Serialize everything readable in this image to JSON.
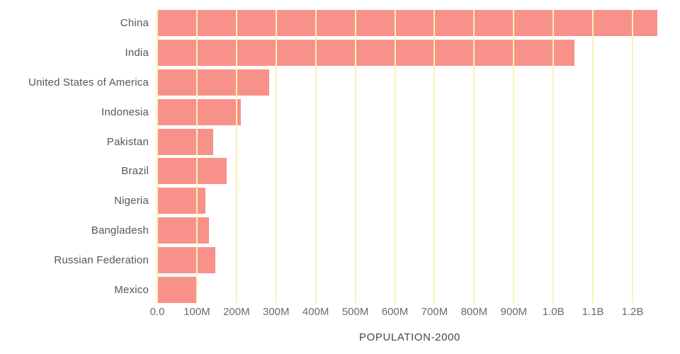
{
  "chart_data": {
    "type": "bar",
    "orientation": "horizontal",
    "title": "POPULATION-2000",
    "categories": [
      "China",
      "India",
      "United States of America",
      "Indonesia",
      "Pakistan",
      "Brazil",
      "Nigeria",
      "Bangladesh",
      "Russian Federation",
      "Mexico"
    ],
    "values_millions": [
      1263,
      1053,
      282,
      211,
      142,
      175,
      122,
      131,
      146,
      98
    ],
    "x_ticks": [
      {
        "label": "0.0",
        "value_m": 0
      },
      {
        "label": "100M",
        "value_m": 100
      },
      {
        "label": "200M",
        "value_m": 200
      },
      {
        "label": "300M",
        "value_m": 300
      },
      {
        "label": "400M",
        "value_m": 400
      },
      {
        "label": "500M",
        "value_m": 500
      },
      {
        "label": "600M",
        "value_m": 600
      },
      {
        "label": "700M",
        "value_m": 700
      },
      {
        "label": "800M",
        "value_m": 800
      },
      {
        "label": "900M",
        "value_m": 900
      },
      {
        "label": "1.0B",
        "value_m": 1000
      },
      {
        "label": "1.1B",
        "value_m": 1100
      },
      {
        "label": "1.2B",
        "value_m": 1200
      }
    ],
    "xlim_millions": [
      0,
      1275
    ],
    "xlabel": "",
    "ylabel": "",
    "legend": "none",
    "grid": "vertical",
    "bar_color": "#F9918B",
    "gridline_color": "#FBF3AE",
    "category_label_color": "#55565c",
    "tick_label_color": "#6b6b70",
    "title_color": "#45464b"
  }
}
